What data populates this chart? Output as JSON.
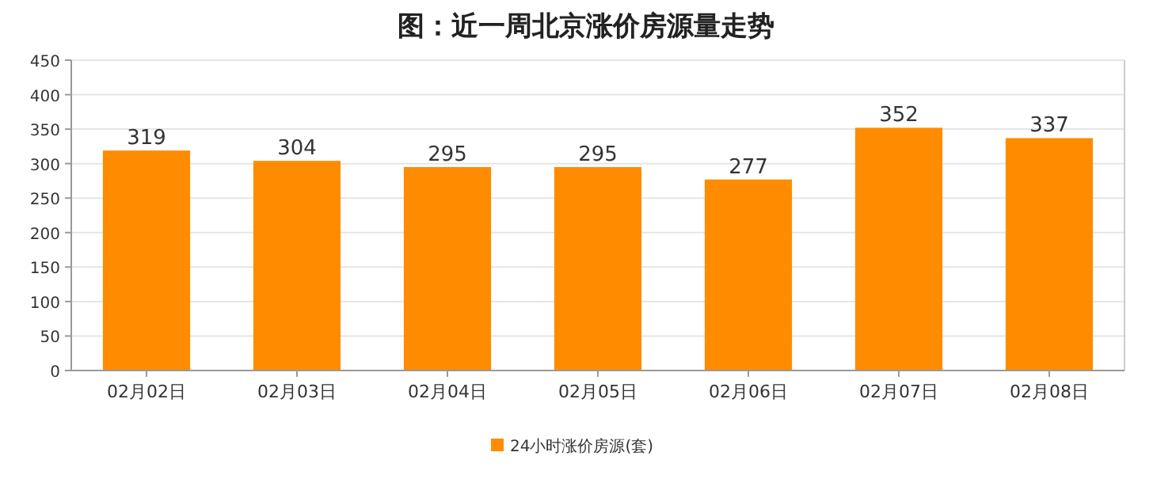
{
  "chart_data": {
    "type": "bar",
    "title": "图：近一周北京涨价房源量走势",
    "categories": [
      "02月02日",
      "02月03日",
      "02月04日",
      "02月05日",
      "02月06日",
      "02月07日",
      "02月08日"
    ],
    "series": [
      {
        "name": "24小时涨价房源(套)",
        "color": "#ff8c00",
        "values": [
          319,
          304,
          295,
          295,
          277,
          352,
          337
        ]
      }
    ],
    "ylim": [
      0,
      450
    ],
    "yticks": [
      0,
      50,
      100,
      150,
      200,
      250,
      300,
      350,
      400,
      450
    ],
    "grid": "y",
    "data_labels": true,
    "legend": "bottom"
  }
}
